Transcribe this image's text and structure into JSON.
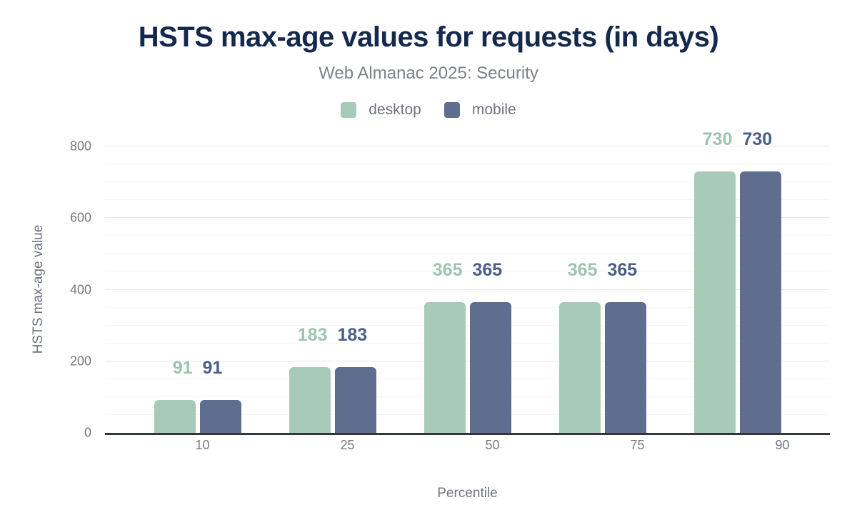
{
  "chart_data": {
    "type": "bar",
    "title": "HSTS max-age values for requests (in days)",
    "subtitle": "Web Almanac 2025: Security",
    "xlabel": "Percentile",
    "ylabel": "HSTS max-age value",
    "categories": [
      "10",
      "25",
      "50",
      "75",
      "90"
    ],
    "series": [
      {
        "name": "desktop",
        "color": "#a8cbb9",
        "label_color": "#9dc4af",
        "values": [
          91,
          183,
          365,
          365,
          730
        ]
      },
      {
        "name": "mobile",
        "color": "#5f6e8e",
        "label_color": "#4c5f88",
        "values": [
          91,
          183,
          365,
          365,
          730
        ]
      }
    ],
    "ylim": [
      0,
      800
    ],
    "y_major_step": 200,
    "y_minor_step": 50,
    "grid": "on",
    "legend_position": "top",
    "data_labels": true
  },
  "colors": {
    "title_color": "#15294d",
    "subtitle_color": "#7d828c",
    "legend_color": "#6f7480",
    "axis_text": "#75797f",
    "axis_title_color": "#6f7480",
    "grid_major": "#e5e7e9",
    "grid_minor": "#f4f5f6",
    "baseline_color": "#33363c"
  }
}
